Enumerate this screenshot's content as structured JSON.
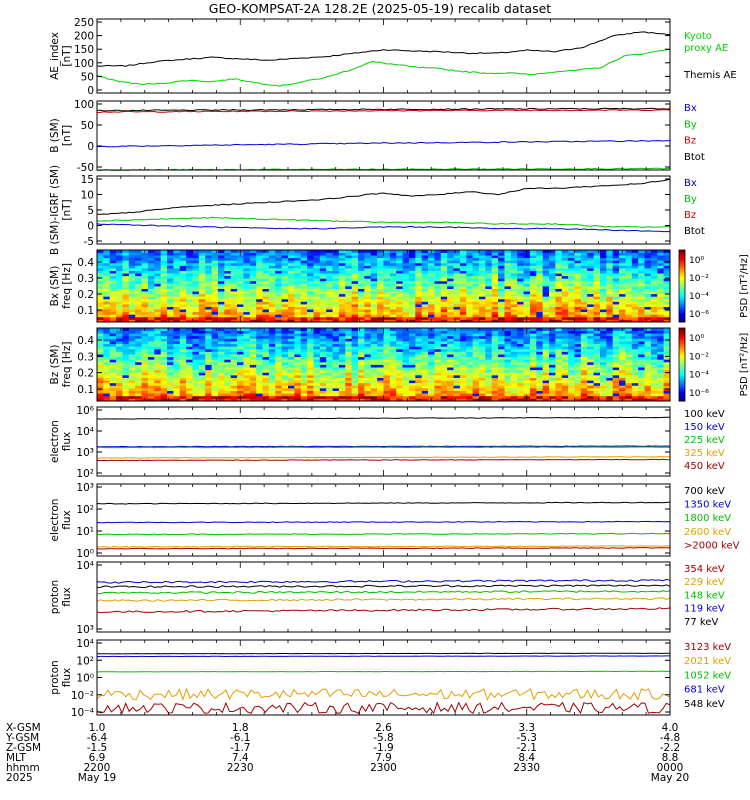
{
  "title": "GEO-KOMPSAT-2A 128.2E (2025-05-19) recalib dataset",
  "chart_data": [
    {
      "type": "line",
      "id": "ae",
      "ylabel": [
        "AE_index",
        "[nT]"
      ],
      "yticks": [
        "250",
        "200",
        "150",
        "100",
        "50",
        "0"
      ],
      "ylim": [
        0,
        260
      ],
      "legend": [
        {
          "name": "Kyoto",
          "color": "#00d000"
        },
        {
          "name": "proxy AE",
          "color": "#00d000"
        },
        {
          "name": "Themis AE",
          "color": "#000000"
        }
      ],
      "series": [
        {
          "name": "Themis AE",
          "color": "#000000",
          "x": [
            0,
            0.05,
            0.1,
            0.15,
            0.2,
            0.25,
            0.3,
            0.35,
            0.4,
            0.45,
            0.5,
            0.55,
            0.6,
            0.65,
            0.7,
            0.75,
            0.8,
            0.85,
            0.9,
            0.95,
            1
          ],
          "y": [
            95,
            95,
            110,
            118,
            125,
            120,
            115,
            122,
            128,
            140,
            152,
            148,
            145,
            140,
            140,
            150,
            145,
            162,
            200,
            215,
            205
          ]
        },
        {
          "name": "Kyoto proxy AE",
          "color": "#00d000",
          "x": [
            0,
            0.04,
            0.08,
            0.12,
            0.16,
            0.2,
            0.24,
            0.28,
            0.32,
            0.36,
            0.4,
            0.44,
            0.48,
            0.52,
            0.56,
            0.6,
            0.64,
            0.68,
            0.72,
            0.76,
            0.8,
            0.84,
            0.88,
            0.92,
            0.96,
            1
          ],
          "y": [
            60,
            40,
            30,
            35,
            45,
            40,
            50,
            35,
            25,
            40,
            55,
            80,
            110,
            100,
            90,
            85,
            75,
            70,
            70,
            65,
            75,
            80,
            90,
            130,
            140,
            155
          ]
        }
      ]
    },
    {
      "type": "line",
      "id": "bsm",
      "ylabel": [
        "B (SM)",
        "[nT]"
      ],
      "yticks": [
        "100",
        "50",
        "0",
        "-50"
      ],
      "ylim": [
        -60,
        140
      ],
      "legend": [
        {
          "name": "Bx",
          "color": "#0000d0"
        },
        {
          "name": "By",
          "color": "#00c000"
        },
        {
          "name": "Bz",
          "color": "#d00000"
        },
        {
          "name": "Btot",
          "color": "#000000"
        }
      ],
      "series": [
        {
          "name": "Btot",
          "color": "#000000",
          "x": [
            0,
            0.5,
            1
          ],
          "y": [
            112,
            116,
            118
          ]
        },
        {
          "name": "Bz",
          "color": "#d00000",
          "x": [
            0,
            0.5,
            1
          ],
          "y": [
            108,
            112,
            114
          ]
        },
        {
          "name": "Bx",
          "color": "#0000d0",
          "x": [
            0,
            0.5,
            1
          ],
          "y": [
            8,
            18,
            25
          ]
        },
        {
          "name": "By",
          "color": "#00c000",
          "x": [
            0,
            0.5,
            1
          ],
          "y": [
            -60,
            -58,
            -56
          ]
        }
      ]
    },
    {
      "type": "line",
      "id": "bigrf",
      "ylabel": [
        "B (SM)-IGRF (SM)",
        "[nT]"
      ],
      "yticks": [
        "15",
        "10",
        "5",
        "0",
        "-5"
      ],
      "ylim": [
        -6,
        16
      ],
      "legend": [
        {
          "name": "Bx",
          "color": "#0000d0"
        },
        {
          "name": "By",
          "color": "#00c000"
        },
        {
          "name": "Bz",
          "color": "#d00000"
        },
        {
          "name": "Btot",
          "color": "#000000"
        }
      ],
      "series": [
        {
          "name": "Btot",
          "color": "#000000",
          "x": [
            0,
            0.05,
            0.1,
            0.15,
            0.2,
            0.25,
            0.3,
            0.35,
            0.4,
            0.45,
            0.5,
            0.55,
            0.6,
            0.65,
            0.7,
            0.75,
            0.8,
            0.85,
            0.9,
            0.95,
            1
          ],
          "y": [
            3.5,
            4,
            5,
            6,
            6.5,
            7,
            7.5,
            8,
            8.5,
            9.5,
            10.5,
            9.5,
            10,
            11,
            10,
            12,
            12,
            12.5,
            13,
            13.5,
            15
          ]
        },
        {
          "name": "By",
          "color": "#00c000",
          "x": [
            0,
            0.1,
            0.2,
            0.3,
            0.4,
            0.5,
            0.6,
            0.7,
            0.8,
            0.9,
            1
          ],
          "y": [
            1.5,
            2,
            2.5,
            2,
            1.5,
            1,
            1,
            0.5,
            0.5,
            -0.5,
            -0.5
          ]
        },
        {
          "name": "Bx",
          "color": "#0000d0",
          "x": [
            0,
            0.1,
            0.2,
            0.3,
            0.4,
            0.5,
            0.6,
            0.7,
            0.8,
            0.9,
            1
          ],
          "y": [
            0.5,
            0,
            -0.5,
            -1,
            -1,
            -0.5,
            -0.5,
            -1,
            -1,
            -1.5,
            -2
          ]
        }
      ]
    },
    {
      "type": "heatmap",
      "id": "bxspec",
      "ylabel": [
        "Bx (SM)",
        "freq [Hz]"
      ],
      "yticks": [
        "0.4",
        "0.3",
        "0.2",
        "0.1"
      ],
      "ylim": [
        0.05,
        0.5
      ],
      "colorbar": {
        "label": "PSD [nT²/Hz]",
        "ticks": [
          "10⁰",
          "10⁻²",
          "10⁻⁴",
          "10⁻⁶"
        ]
      }
    },
    {
      "type": "heatmap",
      "id": "bzspec",
      "ylabel": [
        "Bz (SM)",
        "freq [Hz]"
      ],
      "yticks": [
        "0.4",
        "0.3",
        "0.2",
        "0.1"
      ],
      "ylim": [
        0.05,
        0.5
      ],
      "colorbar": {
        "label": "PSD [nT²/Hz]",
        "ticks": [
          "10⁰",
          "10⁻²",
          "10⁻⁴",
          "10⁻⁶"
        ]
      }
    },
    {
      "type": "line",
      "id": "elec1",
      "ylabel": [
        "electron",
        "flux"
      ],
      "yticks": [
        "10⁶",
        "10⁴",
        "10³",
        "10²"
      ],
      "log": true,
      "ylim": [
        100,
        1000000
      ],
      "legend": [
        {
          "name": "100 keV",
          "color": "#000000"
        },
        {
          "name": "150 keV",
          "color": "#0000d0"
        },
        {
          "name": "225 keV",
          "color": "#00c000"
        },
        {
          "name": "325 keV",
          "color": "#e0a000"
        },
        {
          "name": "450 keV",
          "color": "#a00000"
        }
      ],
      "series": [
        {
          "name": "100 keV",
          "color": "#000000",
          "x": [
            0,
            0.4,
            0.6,
            1
          ],
          "y": [
            200000,
            220000,
            230000,
            250000
          ]
        },
        {
          "name": "150 keV",
          "color": "#0000d0",
          "x": [
            0,
            0.5,
            1
          ],
          "y": [
            5000,
            5200,
            5400
          ]
        },
        {
          "name": "225 keV",
          "color": "#00c000",
          "x": [
            0,
            0.5,
            1
          ],
          "y": [
            4500,
            4600,
            4700
          ]
        },
        {
          "name": "325 keV",
          "color": "#e0a000",
          "x": [
            0,
            0.5,
            1
          ],
          "y": [
            1100,
            1200,
            1300
          ]
        },
        {
          "name": "450 keV",
          "color": "#a00000",
          "x": [
            0,
            0.5,
            1
          ],
          "y": [
            800,
            850,
            900
          ]
        }
      ]
    },
    {
      "type": "line",
      "id": "elec2",
      "ylabel": [
        "electron",
        "flux"
      ],
      "yticks": [
        "10³",
        "10²",
        "10¹",
        "10⁰"
      ],
      "log": true,
      "ylim": [
        1,
        1000
      ],
      "legend": [
        {
          "name": "700 keV",
          "color": "#000000"
        },
        {
          "name": "1350 keV",
          "color": "#0000d0"
        },
        {
          "name": "1800 keV",
          "color": "#00c000"
        },
        {
          "name": "2600 keV",
          "color": "#e0a000"
        },
        {
          "name": ">2000 keV",
          "color": "#a00000"
        }
      ],
      "series": [
        {
          "name": "700 keV",
          "color": "#000000",
          "x": [
            0,
            0.5,
            1
          ],
          "y": [
            150,
            160,
            170
          ]
        },
        {
          "name": "1350 keV",
          "color": "#0000d0",
          "x": [
            0,
            0.5,
            1
          ],
          "y": [
            25,
            26,
            27
          ]
        },
        {
          "name": "1800 keV",
          "color": "#00c000",
          "x": [
            0,
            0.5,
            1
          ],
          "y": [
            8,
            8.2,
            8.5
          ]
        },
        {
          "name": "2600 keV",
          "color": "#e0a000",
          "x": [
            0,
            0.5,
            1
          ],
          "y": [
            2.4,
            2.5,
            2.6
          ]
        },
        {
          "name": ">2000 keV",
          "color": "#a00000",
          "x": [
            0,
            0.5,
            1
          ],
          "y": [
            2,
            2.1,
            2.2
          ]
        }
      ]
    },
    {
      "type": "line",
      "id": "prot1",
      "ylabel": [
        "proton",
        "flux"
      ],
      "yticks": [
        "10⁴",
        "10³"
      ],
      "log": true,
      "ylim": [
        700,
        10000
      ],
      "legend": [
        {
          "name": "354 keV",
          "color": "#a00000"
        },
        {
          "name": "229 keV",
          "color": "#e0a000"
        },
        {
          "name": "148 keV",
          "color": "#00c000"
        },
        {
          "name": "119 keV",
          "color": "#0000d0"
        },
        {
          "name": "77 keV",
          "color": "#000000"
        }
      ],
      "series": [
        {
          "name": "354 keV",
          "color": "#a00000",
          "x": [
            0,
            0.5,
            1
          ],
          "y": [
            1500,
            1600,
            1700
          ]
        },
        {
          "name": "229 keV",
          "color": "#e0a000",
          "x": [
            0,
            0.5,
            1
          ],
          "y": [
            2300,
            2400,
            2500
          ]
        },
        {
          "name": "148 keV",
          "color": "#00c000",
          "x": [
            0,
            0.5,
            1
          ],
          "y": [
            3100,
            3200,
            3300
          ]
        },
        {
          "name": "119 keV",
          "color": "#0000d0",
          "x": [
            0,
            0.5,
            1
          ],
          "y": [
            4600,
            4800,
            5000
          ]
        },
        {
          "name": "77 keV",
          "color": "#000000",
          "x": [
            0,
            0.5,
            1
          ],
          "y": [
            3900,
            4000,
            4100
          ]
        }
      ]
    },
    {
      "type": "line",
      "id": "prot2",
      "ylabel": [
        "proton",
        "flux"
      ],
      "yticks": [
        "10⁴",
        "10²",
        "10⁰",
        "10⁻²",
        "10⁻⁴"
      ],
      "log": true,
      "ylim": [
        5e-05,
        10000
      ],
      "legend": [
        {
          "name": "3123 keV",
          "color": "#a00000"
        },
        {
          "name": "2021 keV",
          "color": "#e0a000"
        },
        {
          "name": "1052 keV",
          "color": "#00c000"
        },
        {
          "name": "681 keV",
          "color": "#0000d0"
        },
        {
          "name": "548 keV",
          "color": "#000000"
        }
      ],
      "series": [
        {
          "name": "548 keV",
          "color": "#000000",
          "x": [
            0,
            0.5,
            1
          ],
          "y": [
            300,
            320,
            340
          ]
        },
        {
          "name": "681 keV",
          "color": "#0000d0",
          "x": [
            0,
            0.5,
            1
          ],
          "y": [
            150,
            160,
            170
          ]
        },
        {
          "name": "1052 keV",
          "color": "#00c000",
          "x": [
            0,
            0.5,
            1
          ],
          "y": [
            3,
            3.2,
            3.4
          ]
        },
        {
          "name": "2021 keV",
          "color": "#e0a000",
          "x": [
            0,
            0.5,
            1
          ],
          "y": [
            0.01,
            0.01,
            0.01
          ]
        },
        {
          "name": "3123 keV",
          "color": "#a00000",
          "x": [
            0,
            0.5,
            1
          ],
          "y": [
            0.0003,
            0.0003,
            0.0003
          ]
        }
      ]
    }
  ],
  "footer": {
    "row_labels": [
      "X-GSM",
      "Y-GSM",
      "Z-GSM",
      "MLT",
      "hhmm",
      "2025"
    ],
    "columns": [
      [
        "1.0",
        "-6.4",
        "-1.5",
        "6.9",
        "2200",
        "May 19"
      ],
      [
        "1.8",
        "-6.1",
        "-1.7",
        "7.4",
        "2230",
        ""
      ],
      [
        "2.6",
        "-5.8",
        "-1.9",
        "7.9",
        "2300",
        ""
      ],
      [
        "3.3",
        "-5.3",
        "-2.1",
        "8.4",
        "2330",
        ""
      ],
      [
        "4.0",
        "-4.8",
        "-2.2",
        "8.8",
        "0000",
        "May 20"
      ]
    ]
  }
}
